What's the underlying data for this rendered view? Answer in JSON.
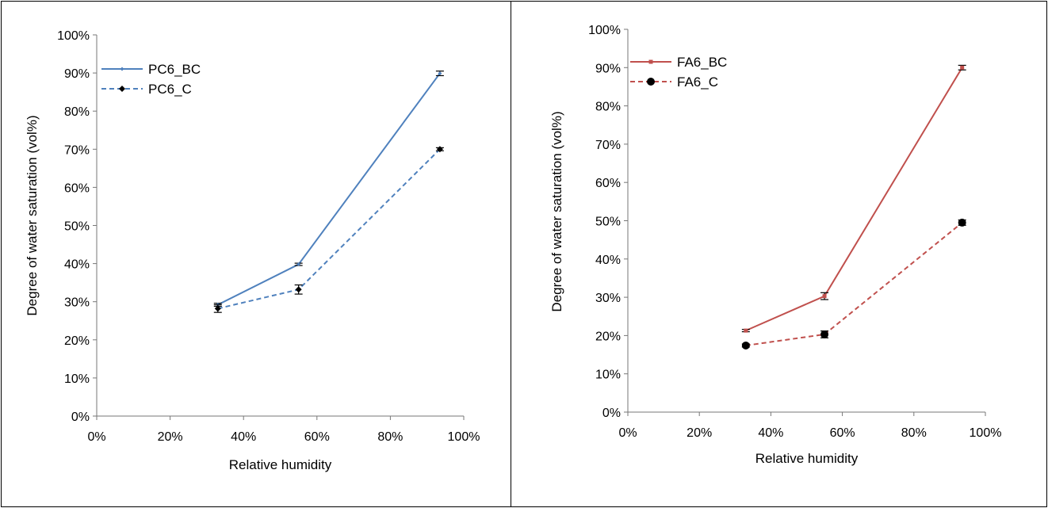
{
  "chart_data": [
    {
      "type": "line",
      "xlabel": "Relative humidity",
      "ylabel": "Degree of water saturation (vol%)",
      "xlim": [
        0,
        100
      ],
      "ylim": [
        0,
        100
      ],
      "x_ticks": [
        "0%",
        "20%",
        "40%",
        "60%",
        "80%",
        "100%"
      ],
      "y_ticks": [
        "0%",
        "10%",
        "20%",
        "30%",
        "40%",
        "50%",
        "60%",
        "70%",
        "80%",
        "90%",
        "100%"
      ],
      "grid": false,
      "legend": "top-left",
      "series": [
        {
          "name": "PC6_BC",
          "color": "#4F81BD",
          "dash": "solid",
          "marker": "small-diamond",
          "x": [
            33,
            55,
            93.5
          ],
          "y": [
            29.2,
            39.8,
            89.9
          ],
          "err": [
            0.4,
            0.3,
            0.6
          ]
        },
        {
          "name": "PC6_C",
          "color": "#4F81BD",
          "dash": "dashed",
          "marker": "diamond",
          "x": [
            33,
            55,
            93.5
          ],
          "y": [
            28.2,
            33.2,
            70.0
          ],
          "err": [
            1.0,
            1.2,
            0.4
          ]
        }
      ]
    },
    {
      "type": "line",
      "xlabel": "Relative humidity",
      "ylabel": "Degree of water saturation (vol%)",
      "xlim": [
        0,
        100
      ],
      "ylim": [
        0,
        100
      ],
      "x_ticks": [
        "0%",
        "20%",
        "40%",
        "60%",
        "80%",
        "100%"
      ],
      "y_ticks": [
        "0%",
        "10%",
        "20%",
        "30%",
        "40%",
        "50%",
        "60%",
        "70%",
        "80%",
        "90%",
        "100%"
      ],
      "grid": false,
      "legend": "top-left",
      "series": [
        {
          "name": "FA6_BC",
          "color": "#C0504D",
          "dash": "solid",
          "marker": "small-square",
          "x": [
            33,
            55,
            93.5
          ],
          "y": [
            21.3,
            30.3,
            90.0
          ],
          "err": [
            0.3,
            0.9,
            0.6
          ]
        },
        {
          "name": "FA6_C",
          "color": "#C0504D",
          "dash": "dashed",
          "marker": "circle",
          "x": [
            33,
            55,
            93.5
          ],
          "y": [
            17.4,
            20.3,
            49.5
          ],
          "err": [
            0.4,
            0.9,
            0.7
          ]
        }
      ]
    }
  ]
}
